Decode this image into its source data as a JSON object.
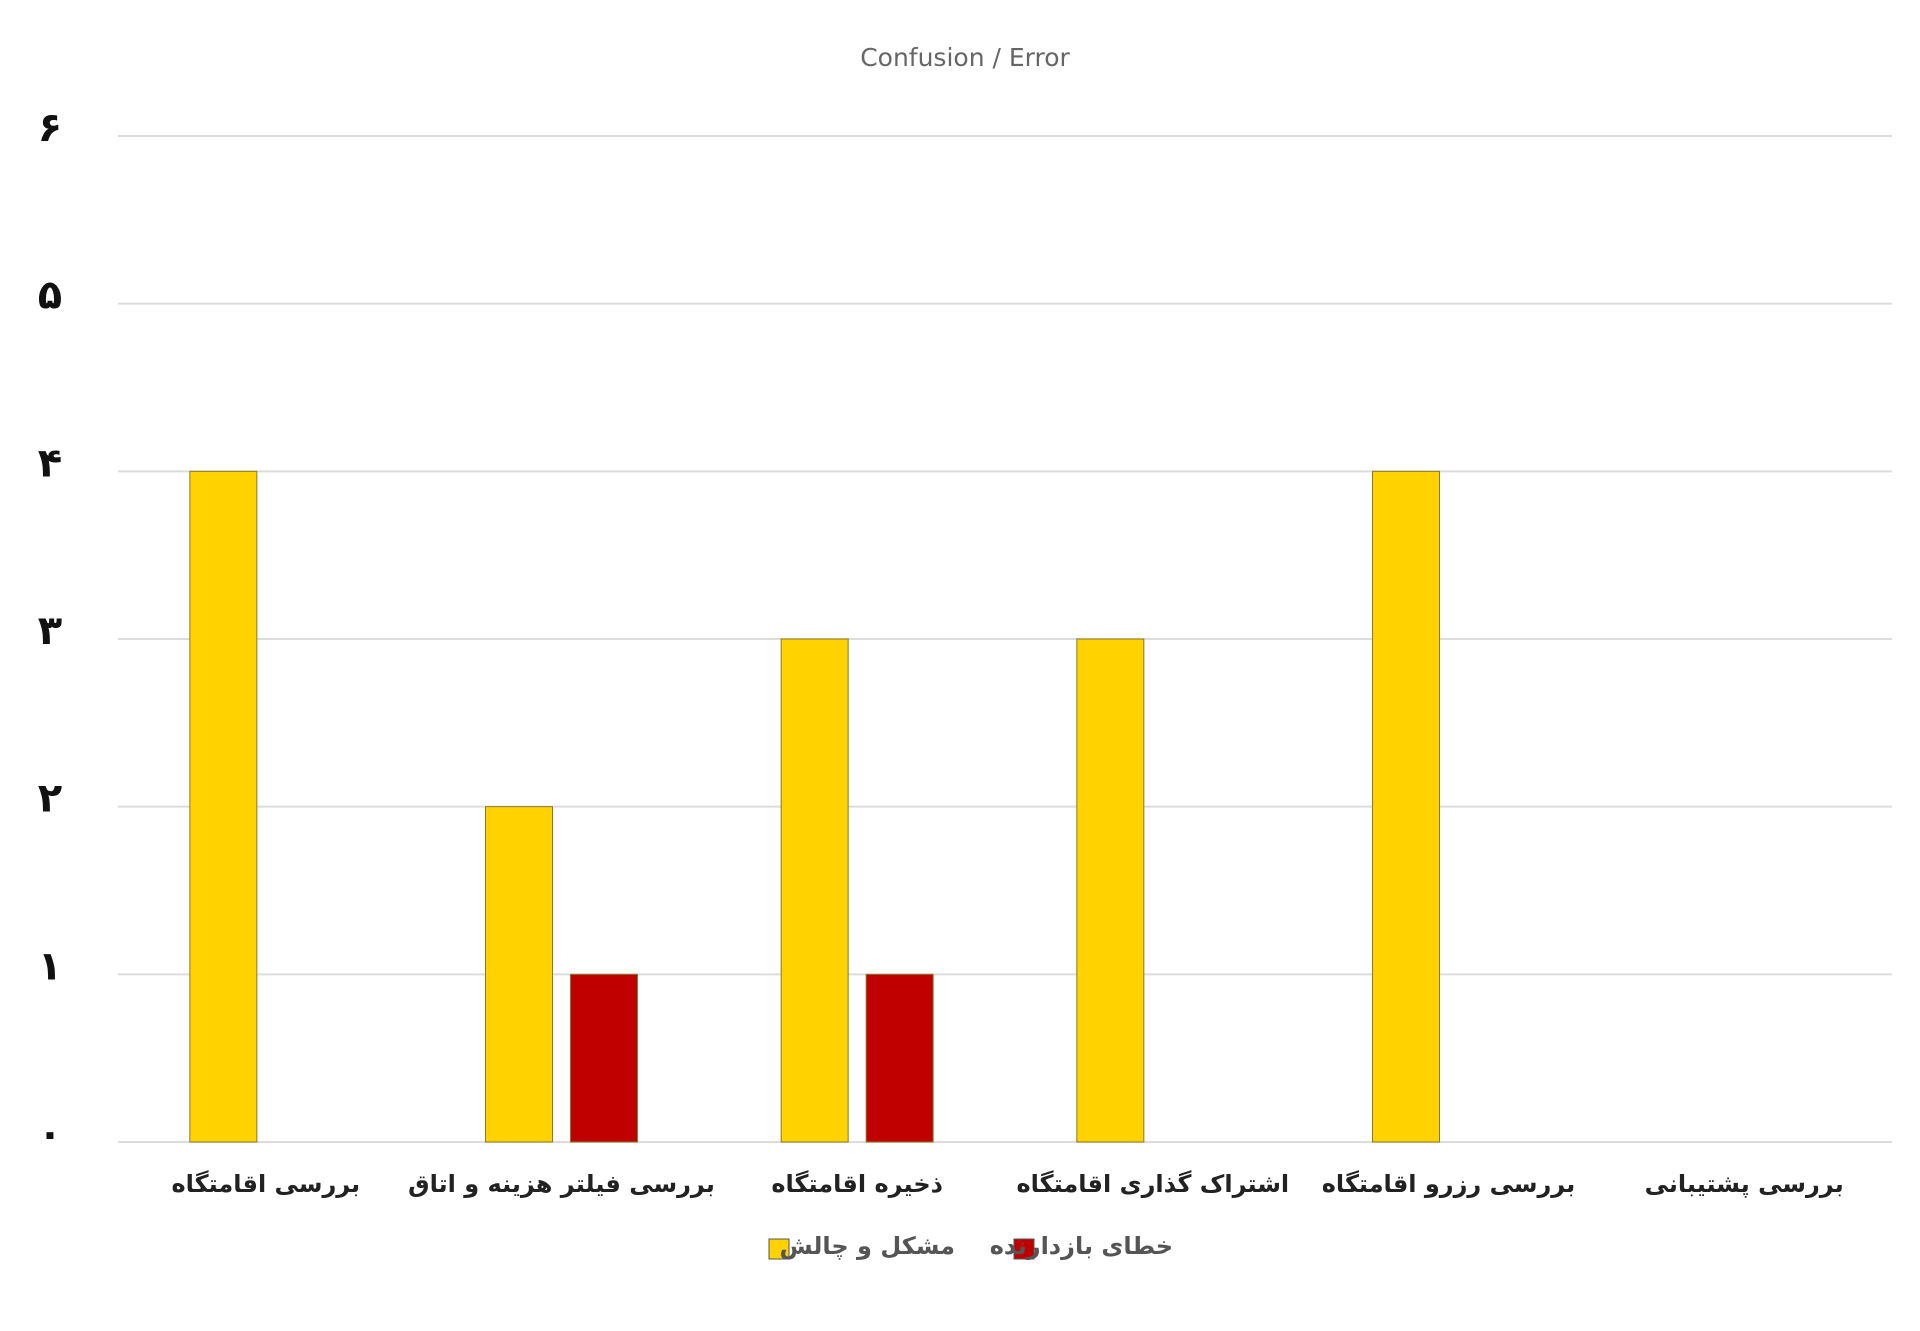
{
  "chart_data": {
    "type": "bar",
    "title": "Confusion / Error",
    "categories": [
      "بررسی اقامتگاه",
      "بررسی فیلتر هزینه و اتاق",
      "ذخیره اقامتگاه",
      "اشتراک گذاری اقامتگاه",
      "بررسی رزرو اقامتگاه",
      "بررسی پشتیبانی"
    ],
    "series": [
      {
        "name": "مشکل و چالش",
        "color": "#FFD200",
        "values": [
          4,
          2,
          3,
          3,
          4,
          0
        ]
      },
      {
        "name": "خطای بازدارنده",
        "color": "#C00000",
        "values": [
          0,
          1,
          1,
          0,
          0,
          0
        ]
      }
    ],
    "ylim": [
      0,
      6
    ],
    "yticks": [
      {
        "value": 0,
        "label": "۰"
      },
      {
        "value": 1,
        "label": "۱"
      },
      {
        "value": 2,
        "label": "۲"
      },
      {
        "value": 3,
        "label": "۳"
      },
      {
        "value": 4,
        "label": "۴"
      },
      {
        "value": 5,
        "label": "۵"
      },
      {
        "value": 6,
        "label": "۶"
      }
    ],
    "grid": true
  }
}
